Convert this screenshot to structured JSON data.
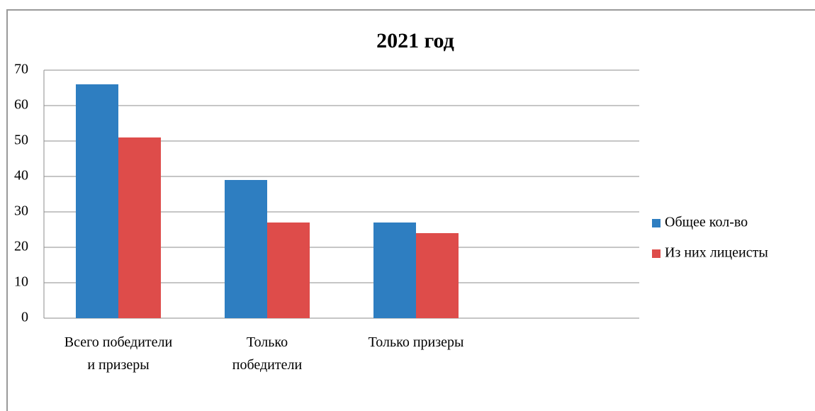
{
  "chart_data": {
    "type": "bar",
    "title": "2021 год",
    "categories": [
      "Всего победители\nи призеры",
      "Только\nпобедители",
      "Только призеры",
      null
    ],
    "series": [
      {
        "name": "Общее кол-во",
        "color": "#2e7ec1",
        "values": [
          66,
          39,
          27,
          null
        ]
      },
      {
        "name": "Из них лицеисты",
        "color": "#de4c4a",
        "values": [
          51,
          27,
          24,
          null
        ]
      }
    ],
    "ylim": [
      0,
      70
    ],
    "yticks": [
      0,
      10,
      20,
      30,
      40,
      50,
      60,
      70
    ],
    "grid": true,
    "legend": "right"
  }
}
